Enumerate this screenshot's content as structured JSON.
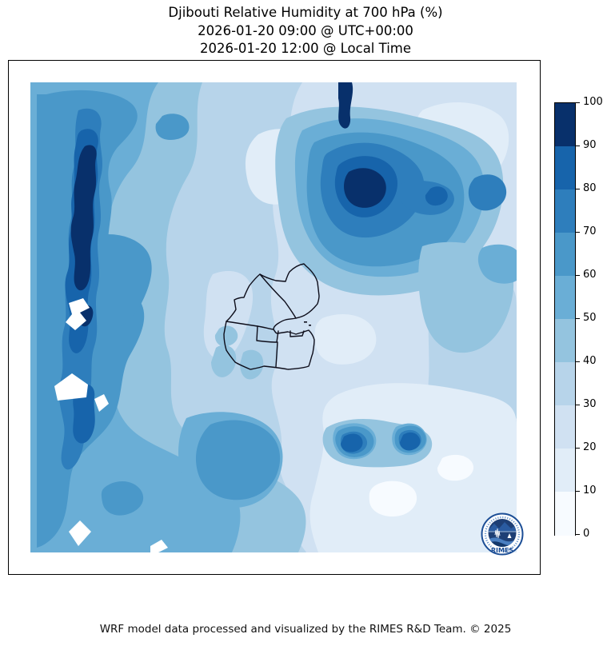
{
  "title": {
    "line1": "Djibouti Relative Humidity at 700 hPa (%)",
    "line2": "2026-01-20 09:00 @ UTC+00:00",
    "line3": "2026-01-20 12:00 @ Local Time"
  },
  "colorbar": {
    "min": 0,
    "max": 100,
    "ticks": [
      "100",
      "90",
      "80",
      "70",
      "60",
      "50",
      "40",
      "30",
      "20",
      "10",
      "0"
    ],
    "palette": [
      "#f7fbff",
      "#e1edf8",
      "#d0e1f2",
      "#b7d4ea",
      "#94c4df",
      "#6aaed6",
      "#4a98c9",
      "#2e7ebc",
      "#1764ab",
      "#08306b"
    ],
    "position": "right"
  },
  "logo": {
    "label": "RIMES"
  },
  "footer": {
    "text": "WRF model data processed and visualized by the RIMES R&D Team. © 2025"
  },
  "chart_data": {
    "type": "heatmap",
    "title": "Djibouti Relative Humidity at 700 hPa (%)",
    "valid_time_utc": "2026-01-20 09:00 @ UTC+00:00",
    "valid_time_local": "2026-01-20 12:00 @ Local Time",
    "variable": "Relative Humidity",
    "pressure_level_hpa": 700,
    "units": "%",
    "legend": {
      "range": [
        0,
        100
      ],
      "interval": 10,
      "colormap": "Blues (10 discrete bands)",
      "position": "right"
    },
    "overlay": "Djibouti national and regional administrative boundaries (black outline, center of map)",
    "field_summary": [
      {
        "region": "western ridge, narrow N-S band on left third",
        "rh_percent": "70-100 (darkest core 90-100)"
      },
      {
        "region": "far west edge",
        "rh_percent": "50-70"
      },
      {
        "region": "top-left quadrant background",
        "rh_percent": "50-60"
      },
      {
        "region": "north-central descending tongue",
        "rh_percent": "40-50"
      },
      {
        "region": "northeast moist cluster with dark core",
        "rh_percent": "60-100 (core 80-100)"
      },
      {
        "region": "center around Djibouti borders",
        "rh_percent": "20-40"
      },
      {
        "region": "pocket east/northeast of Djibouti borders",
        "rh_percent": "10-20"
      },
      {
        "region": "southeast quadrant dry zone",
        "rh_percent": "0-20"
      },
      {
        "region": "twin moist spots in southeast dry zone",
        "rh_percent": "60-90"
      },
      {
        "region": "south-central blob below Djibouti",
        "rh_percent": "50-70"
      },
      {
        "region": "white jagged patches west side and bottom edge",
        "rh_percent": "no data (masked)"
      }
    ]
  }
}
